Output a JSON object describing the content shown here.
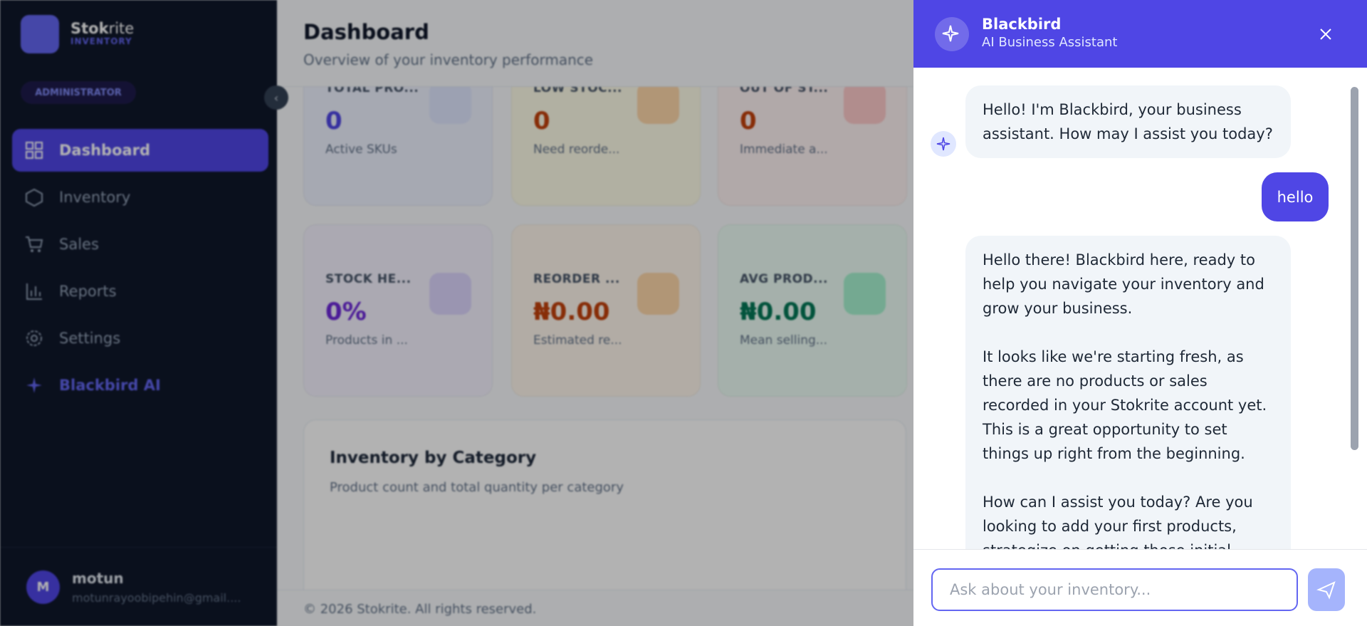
{
  "sidebar": {
    "brand_a": "Stok",
    "brand_b": "rite",
    "brand_sub": "INVENTORY",
    "role": "ADMINISTRATOR",
    "nav": [
      "Dashboard",
      "Inventory",
      "Sales",
      "Reports",
      "Settings",
      "Blackbird AI"
    ],
    "user": {
      "initial": "M",
      "name": "motun",
      "email": "motunrayoobipehin@gmail...."
    }
  },
  "dashboard": {
    "title": "Dashboard",
    "subtitle": "Overview of your inventory performance",
    "cards": [
      {
        "label": "TOTAL PRO...",
        "value": "0",
        "sub": "Active SKUs"
      },
      {
        "label": "LOW STOC...",
        "value": "0",
        "sub": "Need reorde..."
      },
      {
        "label": "OUT OF ST...",
        "value": "0",
        "sub": "Immediate a..."
      },
      {
        "label": "STOCK HE...",
        "value": "0%",
        "sub": "Products in ..."
      },
      {
        "label": "REORDER ...",
        "value": "₦0.00",
        "sub": "Estimated re..."
      },
      {
        "label": "AVG PROD...",
        "value": "₦0.00",
        "sub": "Mean selling..."
      }
    ],
    "section": {
      "title": "Inventory by Category",
      "subtitle": "Product count and total quantity per category"
    },
    "footer": "© 2026 Stokrite. All rights reserved."
  },
  "chat": {
    "title": "Blackbird",
    "subtitle": "AI Business Assistant",
    "messages": [
      {
        "role": "bot",
        "text": "Hello! I'm Blackbird, your business assistant. How may I assist you today?"
      },
      {
        "role": "user",
        "text": "hello"
      },
      {
        "role": "bot",
        "text": "Hello there! Blackbird here, ready to help you navigate your inventory and grow your business.\n\nIt looks like we're starting fresh, as there are no products or sales recorded in your Stokrite account yet. This is a great opportunity to set things up right from the beginning.\n\nHow can I assist you today? Are you looking to add your first products, strategize on getting those initial sales"
      }
    ],
    "placeholder": "Ask about your inventory..."
  }
}
